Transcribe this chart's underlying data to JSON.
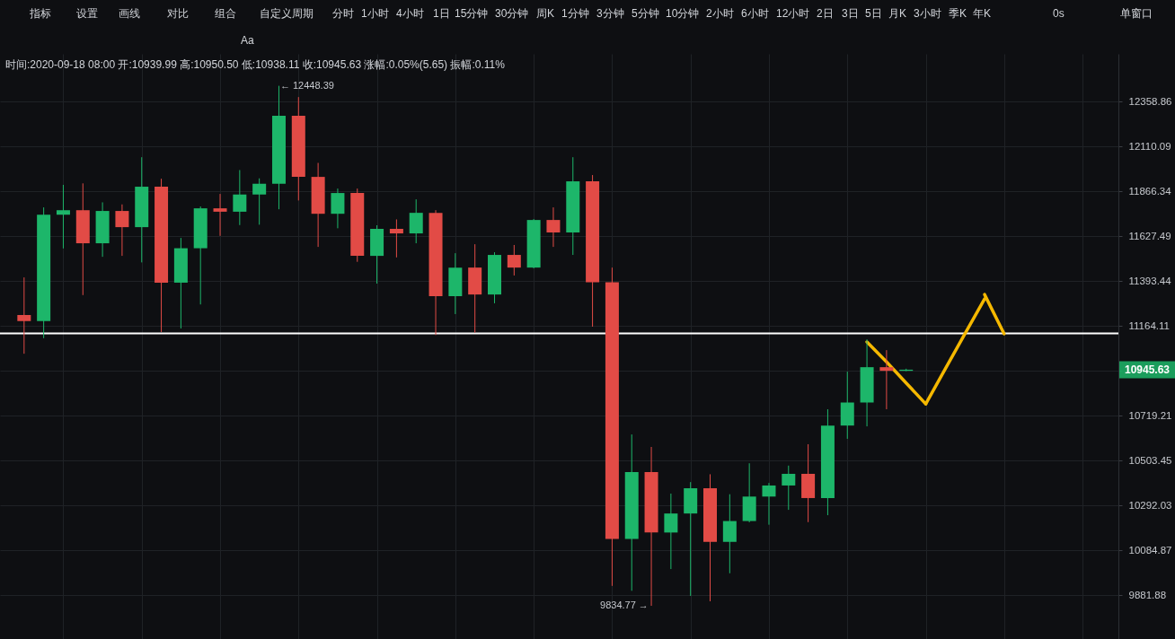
{
  "chart_data": {
    "type": "candlestick",
    "subtitle": "时间:2020-09-18 08:00 开:10939.99 高:10950.50 低:10938.11 收:10945.63 涨幅:0.05%(5.65) 振幅:0.11%",
    "categories": [
      null,
      null,
      null,
      null,
      null,
      null,
      null,
      null,
      null,
      null,
      null,
      null,
      null,
      null,
      null,
      null,
      null,
      null,
      null,
      null,
      null,
      null,
      null,
      null,
      null,
      null,
      null,
      null,
      null,
      null,
      null,
      null,
      null,
      null,
      null,
      null,
      null,
      null,
      null,
      null,
      null,
      null,
      null,
      null,
      null,
      null,
      null,
      null,
      null,
      null,
      null,
      null,
      null,
      null,
      null,
      null
    ],
    "ohlc": [
      [
        11220,
        11413,
        11025,
        11190
      ],
      [
        11190,
        11781,
        11103,
        11742
      ],
      [
        11742,
        11902,
        11564,
        11766
      ],
      [
        11766,
        11910,
        11322,
        11591
      ],
      [
        11591,
        11808,
        11520,
        11762
      ],
      [
        11762,
        11797,
        11525,
        11676
      ],
      [
        11676,
        12052,
        11491,
        11892
      ],
      [
        11892,
        11935,
        11134,
        11386
      ],
      [
        11386,
        11619,
        11152,
        11565
      ],
      [
        11565,
        11786,
        11274,
        11776
      ],
      [
        11776,
        11853,
        11630,
        11758
      ],
      [
        11758,
        11982,
        11687,
        11850
      ],
      [
        11850,
        11937,
        11689,
        11908
      ],
      [
        11908,
        12448.39,
        11771,
        12280
      ],
      [
        12280,
        12385,
        11818,
        11945
      ],
      [
        11945,
        12021,
        11572,
        11747
      ],
      [
        11747,
        11882,
        11670,
        11858
      ],
      [
        11858,
        11882,
        11494,
        11525
      ],
      [
        11525,
        11686,
        11381,
        11667
      ],
      [
        11667,
        11717,
        11517,
        11643
      ],
      [
        11643,
        11824,
        11591,
        11752
      ],
      [
        11752,
        11766,
        11119,
        11316
      ],
      [
        11316,
        11539,
        11225,
        11464
      ],
      [
        11464,
        11586,
        11131,
        11325
      ],
      [
        11325,
        11544,
        11280,
        11530
      ],
      [
        11530,
        11582,
        11423,
        11464
      ],
      [
        11464,
        11719,
        11460,
        11714
      ],
      [
        11714,
        11781,
        11572,
        11648
      ],
      [
        11648,
        12052,
        11530,
        11921
      ],
      [
        11921,
        11955,
        11161,
        11388
      ],
      [
        11388,
        11464,
        9924,
        10137
      ],
      [
        10137,
        10629,
        9902,
        10449
      ],
      [
        10449,
        10569,
        9834.77,
        10167
      ],
      [
        10167,
        10348,
        10000,
        10255
      ],
      [
        10255,
        10402,
        9879,
        10373
      ],
      [
        10373,
        10439,
        9855,
        10124
      ],
      [
        10124,
        10345,
        9981,
        10220
      ],
      [
        10220,
        10491,
        10214,
        10334
      ],
      [
        10334,
        10398,
        10203,
        10386
      ],
      [
        10386,
        10480,
        10272,
        10441
      ],
      [
        10441,
        10582,
        10215,
        10327
      ],
      [
        10327,
        10751,
        10247,
        10672
      ],
      [
        10672,
        10936,
        10608,
        10784
      ],
      [
        10784,
        11097,
        10668,
        10958
      ],
      [
        10958,
        11043,
        10751,
        10940
      ],
      [
        10939.99,
        10950.5,
        10938.11,
        10945.63
      ],
      null,
      null,
      null,
      null,
      null,
      null,
      null,
      null,
      null,
      null
    ],
    "colors": [
      "#e24b46",
      "#1db66a",
      "#1db66a",
      "#e24b46",
      "#1db66a",
      "#e24b46",
      "#1db66a",
      "#e24b46",
      "#1db66a",
      "#1db66a",
      "#e24b46",
      "#1db66a",
      "#1db66a",
      "#1db66a",
      "#e24b46",
      "#e24b46",
      "#1db66a",
      "#e24b46",
      "#1db66a",
      "#e24b46",
      "#1db66a",
      "#e24b46",
      "#1db66a",
      "#e24b46",
      "#1db66a",
      "#e24b46",
      "#1db66a",
      "#e24b46",
      "#1db66a",
      "#e24b46",
      "#e24b46",
      "#1db66a",
      "#e24b46",
      "#1db66a",
      "#1db66a",
      "#e24b46",
      "#1db66a",
      "#1db66a",
      "#1db66a",
      "#1db66a",
      "#e24b46",
      "#1db66a",
      "#1db66a",
      "#1db66a",
      "#e24b46",
      "#1db66a",
      null,
      null,
      null,
      null,
      null,
      null,
      null,
      null,
      null,
      null
    ],
    "series": [
      {
        "type": "line",
        "color": "#f5b800",
        "values": [
          null,
          null,
          null,
          null,
          null,
          null,
          null,
          null,
          null,
          null,
          null,
          null,
          null,
          null,
          null,
          null,
          null,
          null,
          null,
          null,
          null,
          null,
          null,
          null,
          null,
          null,
          null,
          null,
          null,
          null,
          null,
          null,
          null,
          null,
          null,
          null,
          null,
          null,
          null,
          null,
          null,
          null,
          null,
          11084,
          10984,
          10880,
          10777,
          null,
          null,
          null,
          null,
          null,
          null,
          null,
          null,
          null
        ]
      },
      {
        "type": "line",
        "color": "#f5b800",
        "values": [
          null,
          null,
          null,
          null,
          null,
          null,
          null,
          null,
          null,
          null,
          null,
          null,
          null,
          null,
          null,
          null,
          null,
          null,
          null,
          null,
          null,
          null,
          null,
          null,
          null,
          null,
          null,
          null,
          null,
          null,
          null,
          null,
          null,
          null,
          null,
          null,
          null,
          null,
          null,
          null,
          null,
          null,
          null,
          null,
          null,
          null,
          10777,
          10950,
          11125,
          11302,
          null,
          null,
          null,
          null,
          null,
          null
        ]
      },
      {
        "type": "line",
        "color": "#f5b800",
        "values": [
          null,
          null,
          null,
          null,
          null,
          null,
          null,
          null,
          null,
          null,
          null,
          null,
          null,
          null,
          null,
          null,
          null,
          null,
          null,
          null,
          null,
          null,
          null,
          null,
          null,
          null,
          null,
          null,
          null,
          null,
          null,
          null,
          null,
          null,
          null,
          null,
          null,
          null,
          null,
          null,
          null,
          null,
          null,
          null,
          null,
          null,
          null,
          null,
          null,
          11325,
          11125,
          null,
          null,
          null,
          null,
          null
        ]
      }
    ],
    "ylim": [
      9688,
      12630
    ],
    "yticks": [
      12358.86,
      12110.09,
      11866.34,
      11627.49,
      11393.44,
      11164.11,
      {
        "value": 10939.4,
        "label": null
      },
      10719.21,
      10503.45,
      10292.03,
      10084.87,
      9881.88
    ],
    "log": true,
    "grid": true,
    "tick_labels": "y",
    "ref_lines": [
      {
        "axis": "y",
        "value": 11127,
        "color": "#ffffff"
      }
    ],
    "annotations": [
      "指标",
      "设置",
      "画线",
      "对比",
      "组合",
      "自定义周期",
      "分时",
      "1小时",
      "4小时",
      "1日",
      "15分钟",
      "30分钟",
      "周K",
      "1分钟",
      "3分钟",
      "5分钟",
      "10分钟",
      "2小时",
      "6小时",
      "12小时",
      "2日",
      "3日",
      "5日",
      "月K",
      "3小时",
      "季K",
      "年K",
      "0s",
      "单窗口",
      "Aa",
      "← 12448.39",
      "9834.77 →",
      "10945.63"
    ]
  }
}
